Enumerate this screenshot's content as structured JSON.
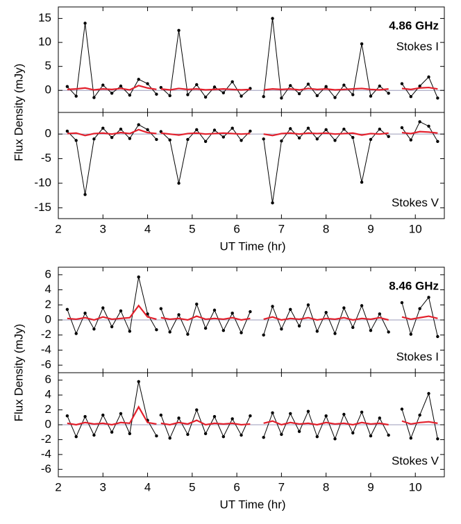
{
  "chart_data": [
    {
      "type": "line",
      "ylabel": "Flux Density  (mJy)",
      "annotations": [
        {
          "text": "4.86 GHz",
          "bold": true,
          "position": "top-right"
        },
        {
          "text": "Stokes I",
          "position": "top-right"
        }
      ],
      "x": [
        2.2,
        2.4,
        2.6,
        2.8,
        3.0,
        3.2,
        3.4,
        3.6,
        3.8,
        4.0,
        4.2,
        4.25,
        4.3,
        4.5,
        4.7,
        4.9,
        5.1,
        5.3,
        5.5,
        5.7,
        5.9,
        6.1,
        6.3,
        6.45,
        6.6,
        6.8,
        7.0,
        7.2,
        7.4,
        7.6,
        7.8,
        8.0,
        8.2,
        8.4,
        8.6,
        8.8,
        9.0,
        9.2,
        9.4,
        9.55,
        9.7,
        9.9,
        10.1,
        10.3,
        10.5
      ],
      "xlim": [
        2,
        10.65
      ],
      "xticks": [
        2,
        3,
        4,
        5,
        6,
        7,
        8,
        9,
        10
      ],
      "ylim": [
        -4.6,
        17.4
      ],
      "yticks": [
        0,
        5,
        10,
        15
      ],
      "series": [
        {
          "color": "#000000",
          "values": [
            0.8,
            -1.2,
            14.0,
            -1.5,
            1.1,
            -0.6,
            0.9,
            -1.0,
            2.3,
            1.4,
            -0.8,
            null,
            0.6,
            -1.1,
            12.5,
            -0.9,
            1.2,
            -1.4,
            0.7,
            -0.5,
            1.8,
            -1.2,
            0.4,
            null,
            -1.3,
            15.0,
            -1.6,
            1.0,
            -0.7,
            1.3,
            -1.1,
            0.8,
            -1.5,
            1.1,
            -0.9,
            9.7,
            -1.2,
            0.9,
            -0.6,
            null,
            1.4,
            -1.3,
            0.9,
            2.8,
            -1.6
          ]
        },
        {
          "color": "#e3202c",
          "values": [
            0.2,
            0.3,
            0.5,
            0.1,
            0.3,
            0.2,
            0.4,
            0.1,
            1.0,
            0.5,
            0.2,
            null,
            0.3,
            0.1,
            0.4,
            0.2,
            0.3,
            0.1,
            0.2,
            0.3,
            0.2,
            0.1,
            0.2,
            null,
            0.1,
            0.3,
            0.2,
            0.3,
            0.1,
            0.4,
            0.2,
            0.3,
            0.1,
            0.2,
            0.3,
            0.4,
            0.2,
            0.1,
            0.3,
            null,
            0.4,
            0.2,
            0.5,
            0.6,
            0.3
          ]
        }
      ]
    },
    {
      "type": "line",
      "xlabel": "UT Time  (hr)",
      "annotations": [
        {
          "text": "Stokes V",
          "position": "bottom-right"
        }
      ],
      "x": [
        2.2,
        2.4,
        2.6,
        2.8,
        3.0,
        3.2,
        3.4,
        3.6,
        3.8,
        4.0,
        4.2,
        4.25,
        4.3,
        4.5,
        4.7,
        4.9,
        5.1,
        5.3,
        5.5,
        5.7,
        5.9,
        6.1,
        6.3,
        6.45,
        6.6,
        6.8,
        7.0,
        7.2,
        7.4,
        7.6,
        7.8,
        8.0,
        8.2,
        8.4,
        8.6,
        8.8,
        9.0,
        9.2,
        9.4,
        9.55,
        9.7,
        9.9,
        10.1,
        10.3,
        10.5
      ],
      "xlim": [
        2,
        10.65
      ],
      "xticks": [
        2,
        3,
        4,
        5,
        6,
        7,
        8,
        9,
        10
      ],
      "ylim": [
        -17.2,
        4.4
      ],
      "yticks": [
        0,
        -5,
        -10,
        -15
      ],
      "series": [
        {
          "color": "#000000",
          "values": [
            0.6,
            -1.3,
            -12.3,
            -1.0,
            1.2,
            -0.7,
            1.0,
            -0.9,
            1.9,
            0.9,
            -1.1,
            null,
            0.5,
            -1.2,
            -10.0,
            -1.1,
            0.9,
            -1.5,
            0.8,
            -0.6,
            1.2,
            -1.3,
            0.6,
            null,
            -1.0,
            -14.0,
            -1.4,
            1.1,
            -0.8,
            1.2,
            -1.0,
            0.9,
            -1.3,
            1.0,
            -0.7,
            -9.8,
            -1.1,
            1.0,
            -0.5,
            null,
            1.3,
            -1.2,
            2.5,
            1.6,
            -1.5
          ]
        },
        {
          "color": "#e3202c",
          "values": [
            0.1,
            0.2,
            -0.3,
            0.1,
            0.2,
            0.0,
            0.3,
            0.1,
            0.9,
            0.3,
            0.1,
            null,
            0.2,
            0.0,
            -0.2,
            0.1,
            0.2,
            0.0,
            0.1,
            0.2,
            0.1,
            0.0,
            0.1,
            null,
            0.0,
            -0.3,
            0.1,
            0.2,
            0.0,
            0.2,
            0.1,
            0.2,
            0.0,
            0.1,
            0.2,
            -0.2,
            0.1,
            0.0,
            0.2,
            null,
            0.3,
            0.1,
            0.5,
            0.4,
            0.2
          ]
        }
      ]
    },
    {
      "type": "line",
      "ylabel": "Flux Density  (mJy)",
      "annotations": [
        {
          "text": "8.46 GHz",
          "bold": true,
          "position": "top-right"
        },
        {
          "text": "Stokes I",
          "position": "bottom-right"
        }
      ],
      "x": [
        2.2,
        2.4,
        2.6,
        2.8,
        3.0,
        3.2,
        3.4,
        3.6,
        3.8,
        4.0,
        4.2,
        4.25,
        4.3,
        4.5,
        4.7,
        4.9,
        5.1,
        5.3,
        5.5,
        5.7,
        5.9,
        6.1,
        6.3,
        6.45,
        6.6,
        6.8,
        7.0,
        7.2,
        7.4,
        7.6,
        7.8,
        8.0,
        8.2,
        8.4,
        8.6,
        8.8,
        9.0,
        9.2,
        9.4,
        9.55,
        9.7,
        9.9,
        10.1,
        10.3,
        10.5
      ],
      "xlim": [
        2,
        10.65
      ],
      "xticks": [
        2,
        3,
        4,
        5,
        6,
        7,
        8,
        9,
        10
      ],
      "ylim": [
        -7,
        7
      ],
      "yticks": [
        6,
        4,
        2,
        0,
        -2,
        -4,
        -6
      ],
      "series": [
        {
          "color": "#000000",
          "values": [
            1.4,
            -1.8,
            0.9,
            -1.2,
            1.6,
            -0.9,
            1.2,
            -1.5,
            5.7,
            0.8,
            -1.3,
            null,
            1.5,
            -1.6,
            0.7,
            -1.9,
            2.1,
            -1.1,
            1.3,
            -1.4,
            0.9,
            -1.7,
            1.1,
            null,
            -2.0,
            1.8,
            -1.2,
            1.4,
            -0.8,
            2.0,
            -1.5,
            1.0,
            -1.8,
            1.6,
            -1.0,
            1.9,
            -1.4,
            0.8,
            -1.6,
            null,
            2.3,
            -1.9,
            1.5,
            3.0,
            -2.2
          ]
        },
        {
          "color": "#e3202c",
          "values": [
            0.2,
            0.1,
            0.3,
            0.0,
            0.4,
            0.1,
            0.2,
            0.3,
            1.9,
            0.4,
            0.1,
            null,
            0.3,
            0.1,
            0.2,
            0.0,
            0.5,
            0.1,
            0.2,
            0.1,
            0.3,
            0.0,
            0.2,
            null,
            0.1,
            0.4,
            0.0,
            0.2,
            0.1,
            0.3,
            0.0,
            0.2,
            0.1,
            0.3,
            0.0,
            0.2,
            0.1,
            0.3,
            0.0,
            null,
            0.4,
            0.1,
            0.3,
            0.5,
            0.2
          ]
        }
      ]
    },
    {
      "type": "line",
      "xlabel": "UT Time  (hr)",
      "annotations": [
        {
          "text": "Stokes V",
          "position": "bottom-right"
        }
      ],
      "x": [
        2.2,
        2.4,
        2.6,
        2.8,
        3.0,
        3.2,
        3.4,
        3.6,
        3.8,
        4.0,
        4.2,
        4.25,
        4.3,
        4.5,
        4.7,
        4.9,
        5.1,
        5.3,
        5.5,
        5.7,
        5.9,
        6.1,
        6.3,
        6.45,
        6.6,
        6.8,
        7.0,
        7.2,
        7.4,
        7.6,
        7.8,
        8.0,
        8.2,
        8.4,
        8.6,
        8.8,
        9.0,
        9.2,
        9.4,
        9.55,
        9.7,
        9.9,
        10.1,
        10.3,
        10.5
      ],
      "xlim": [
        2,
        10.65
      ],
      "xticks": [
        2,
        3,
        4,
        5,
        6,
        7,
        8,
        9,
        10
      ],
      "ylim": [
        -7,
        7
      ],
      "yticks": [
        6,
        4,
        2,
        0,
        -2,
        -4,
        -6
      ],
      "series": [
        {
          "color": "#000000",
          "values": [
            1.2,
            -1.6,
            1.1,
            -1.4,
            1.3,
            -1.0,
            1.5,
            -1.2,
            5.8,
            0.6,
            -1.5,
            null,
            1.3,
            -1.8,
            0.9,
            -1.3,
            2.0,
            -1.2,
            1.1,
            -1.6,
            0.8,
            -1.4,
            1.2,
            null,
            -1.7,
            1.6,
            -1.3,
            1.5,
            -0.9,
            1.8,
            -1.6,
            1.2,
            -1.9,
            1.4,
            -1.1,
            1.7,
            -1.5,
            0.9,
            -1.4,
            null,
            2.1,
            -1.8,
            1.3,
            4.2,
            -1.9
          ]
        },
        {
          "color": "#e3202c",
          "values": [
            0.2,
            0.0,
            0.3,
            0.1,
            0.2,
            0.0,
            0.3,
            0.2,
            2.4,
            0.3,
            0.1,
            null,
            0.2,
            0.0,
            0.3,
            0.1,
            0.6,
            0.0,
            0.2,
            0.1,
            0.2,
            0.0,
            0.1,
            null,
            0.2,
            0.5,
            0.0,
            0.3,
            0.1,
            0.2,
            0.0,
            0.3,
            0.1,
            0.2,
            0.0,
            0.3,
            0.1,
            0.2,
            0.0,
            null,
            0.5,
            0.1,
            0.3,
            0.4,
            0.2
          ]
        }
      ]
    }
  ]
}
